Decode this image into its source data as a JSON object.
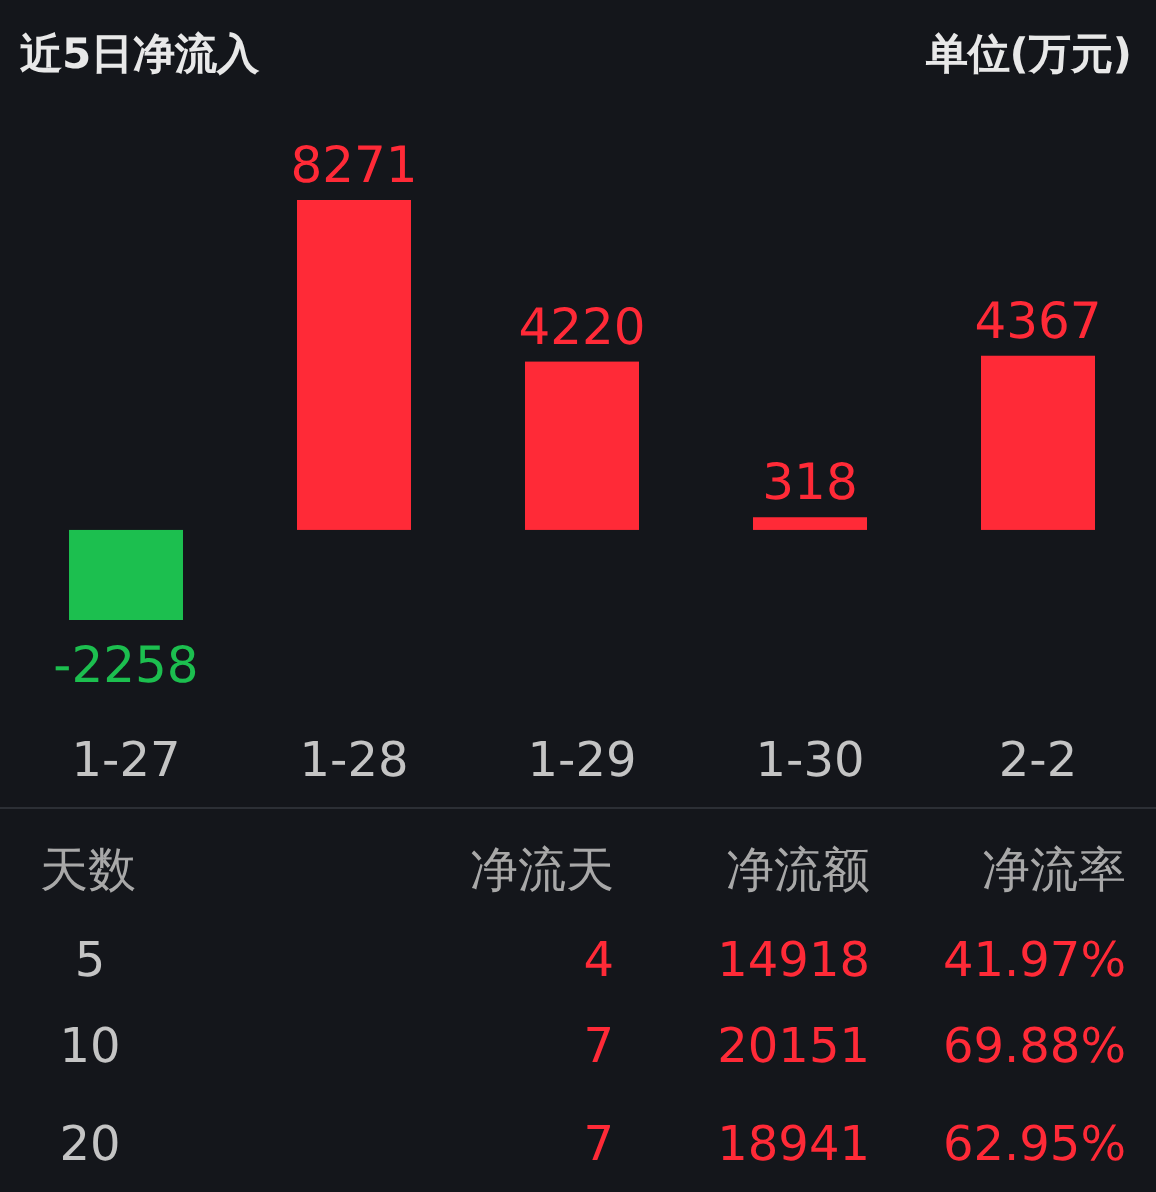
{
  "chart_data": [
    {
      "type": "bar",
      "title": "近5日净流入",
      "subtitle": "单位(万元)",
      "categories": [
        "1-27",
        "1-28",
        "1-29",
        "1-30",
        "2-2"
      ],
      "values": [
        -2258,
        8271,
        4220,
        318,
        4367
      ],
      "colors": [
        "#1cbf4f",
        "#ff2a37",
        "#ff2a37",
        "#ff2a37",
        "#ff2a37"
      ],
      "data_labels": true
    },
    {
      "type": "other",
      "annotations": [
        "天数",
        "净流天",
        "净流额",
        "净流率",
        "5",
        "4",
        "14918",
        "41.97%",
        "10",
        "7",
        "20151",
        "69.88%",
        "20",
        "7",
        "18941",
        "62.95%"
      ]
    }
  ]
}
